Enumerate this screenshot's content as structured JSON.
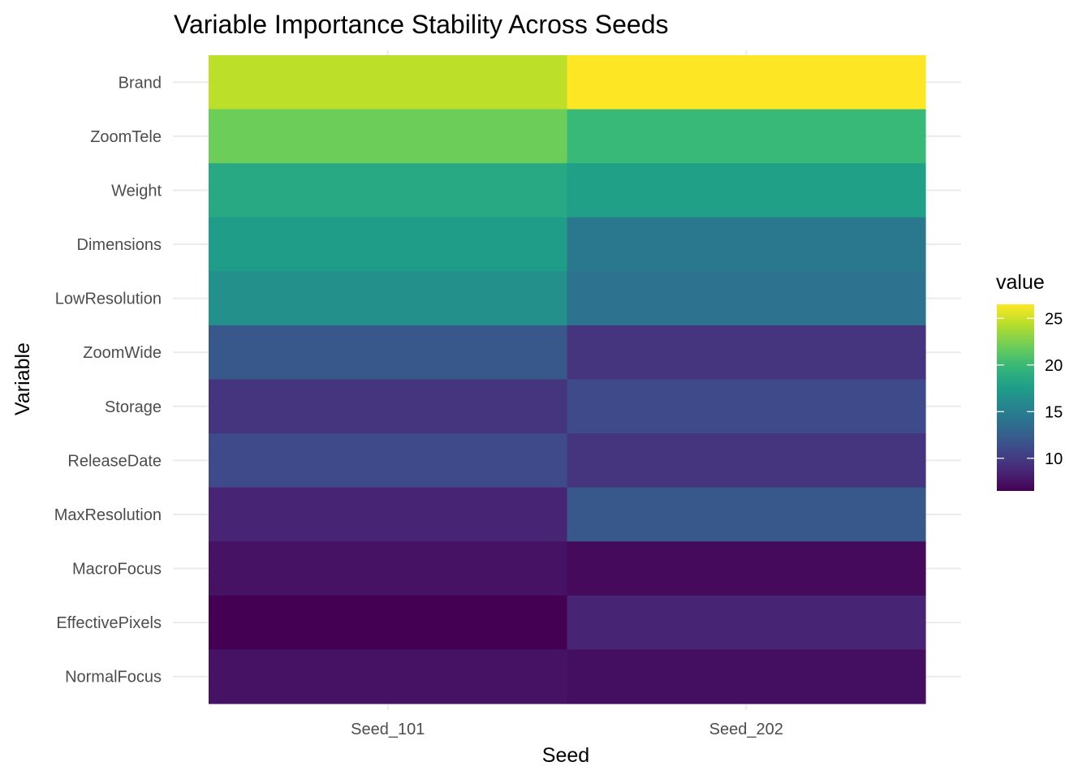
{
  "chart_data": {
    "type": "heatmap",
    "title": "Variable Importance Stability Across Seeds",
    "xlabel": "Seed",
    "ylabel": "Variable",
    "x_categories": [
      "Seed_101",
      "Seed_202"
    ],
    "y_categories": [
      "Brand",
      "ZoomTele",
      "Weight",
      "Dimensions",
      "LowResolution",
      "ZoomWide",
      "Storage",
      "ReleaseDate",
      "MaxResolution",
      "MacroFocus",
      "EffectivePixels",
      "NormalFocus"
    ],
    "values": [
      [
        24.5,
        26.5
      ],
      [
        22.0,
        20.0
      ],
      [
        18.5,
        17.8
      ],
      [
        17.5,
        14.5
      ],
      [
        16.5,
        14.0
      ],
      [
        12.0,
        9.5
      ],
      [
        9.5,
        11.0
      ],
      [
        11.0,
        9.5
      ],
      [
        8.5,
        12.0
      ],
      [
        7.5,
        7.0
      ],
      [
        6.5,
        8.5
      ],
      [
        7.5,
        7.3
      ]
    ],
    "colorscale": "viridis",
    "color_range": [
      6.5,
      26.5
    ],
    "legend": {
      "title": "value",
      "ticks": [
        10,
        15,
        20,
        25
      ],
      "position": "right"
    },
    "grid": true
  }
}
